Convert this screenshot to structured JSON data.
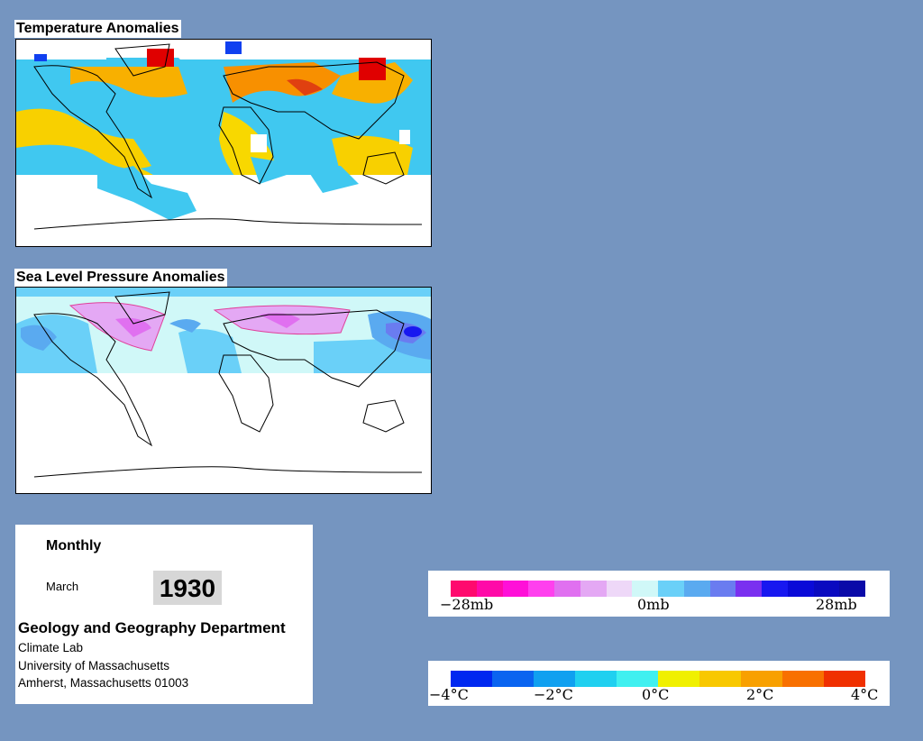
{
  "temperature": {
    "title": "Temperature Anomalies"
  },
  "pressure": {
    "title": "Sea Level Pressure Anomalies"
  },
  "info": {
    "period": "Monthly",
    "month": "March",
    "year": "1930",
    "department": "Geology and Geography Department",
    "lab": "Climate Lab",
    "university": "University of Massachusetts",
    "address": "Amherst, Massachusetts 01003"
  },
  "pressure_legend": {
    "min_label": "−28mb",
    "mid_label": "0mb",
    "max_label": "28mb",
    "colors": [
      "#ff0a6e",
      "#ff0aa8",
      "#ff10d8",
      "#ff40ee",
      "#e070f0",
      "#e4a8f4",
      "#eed8f8",
      "#d0f8f8",
      "#6ad0f8",
      "#5aaaf0",
      "#6a7cf0",
      "#7a30f0",
      "#1818f0",
      "#0a0ad8",
      "#0a0ac0",
      "#0a0aa8"
    ]
  },
  "temperature_legend": {
    "labels": [
      "−4°C",
      "−2°C",
      "0°C",
      "2°C",
      "4°C"
    ],
    "colors": [
      "#0028f0",
      "#0a64f0",
      "#10a0f0",
      "#20d0f0",
      "#40f0f0",
      "#f0f000",
      "#f8c800",
      "#f8a000",
      "#f87000",
      "#f03000"
    ]
  }
}
